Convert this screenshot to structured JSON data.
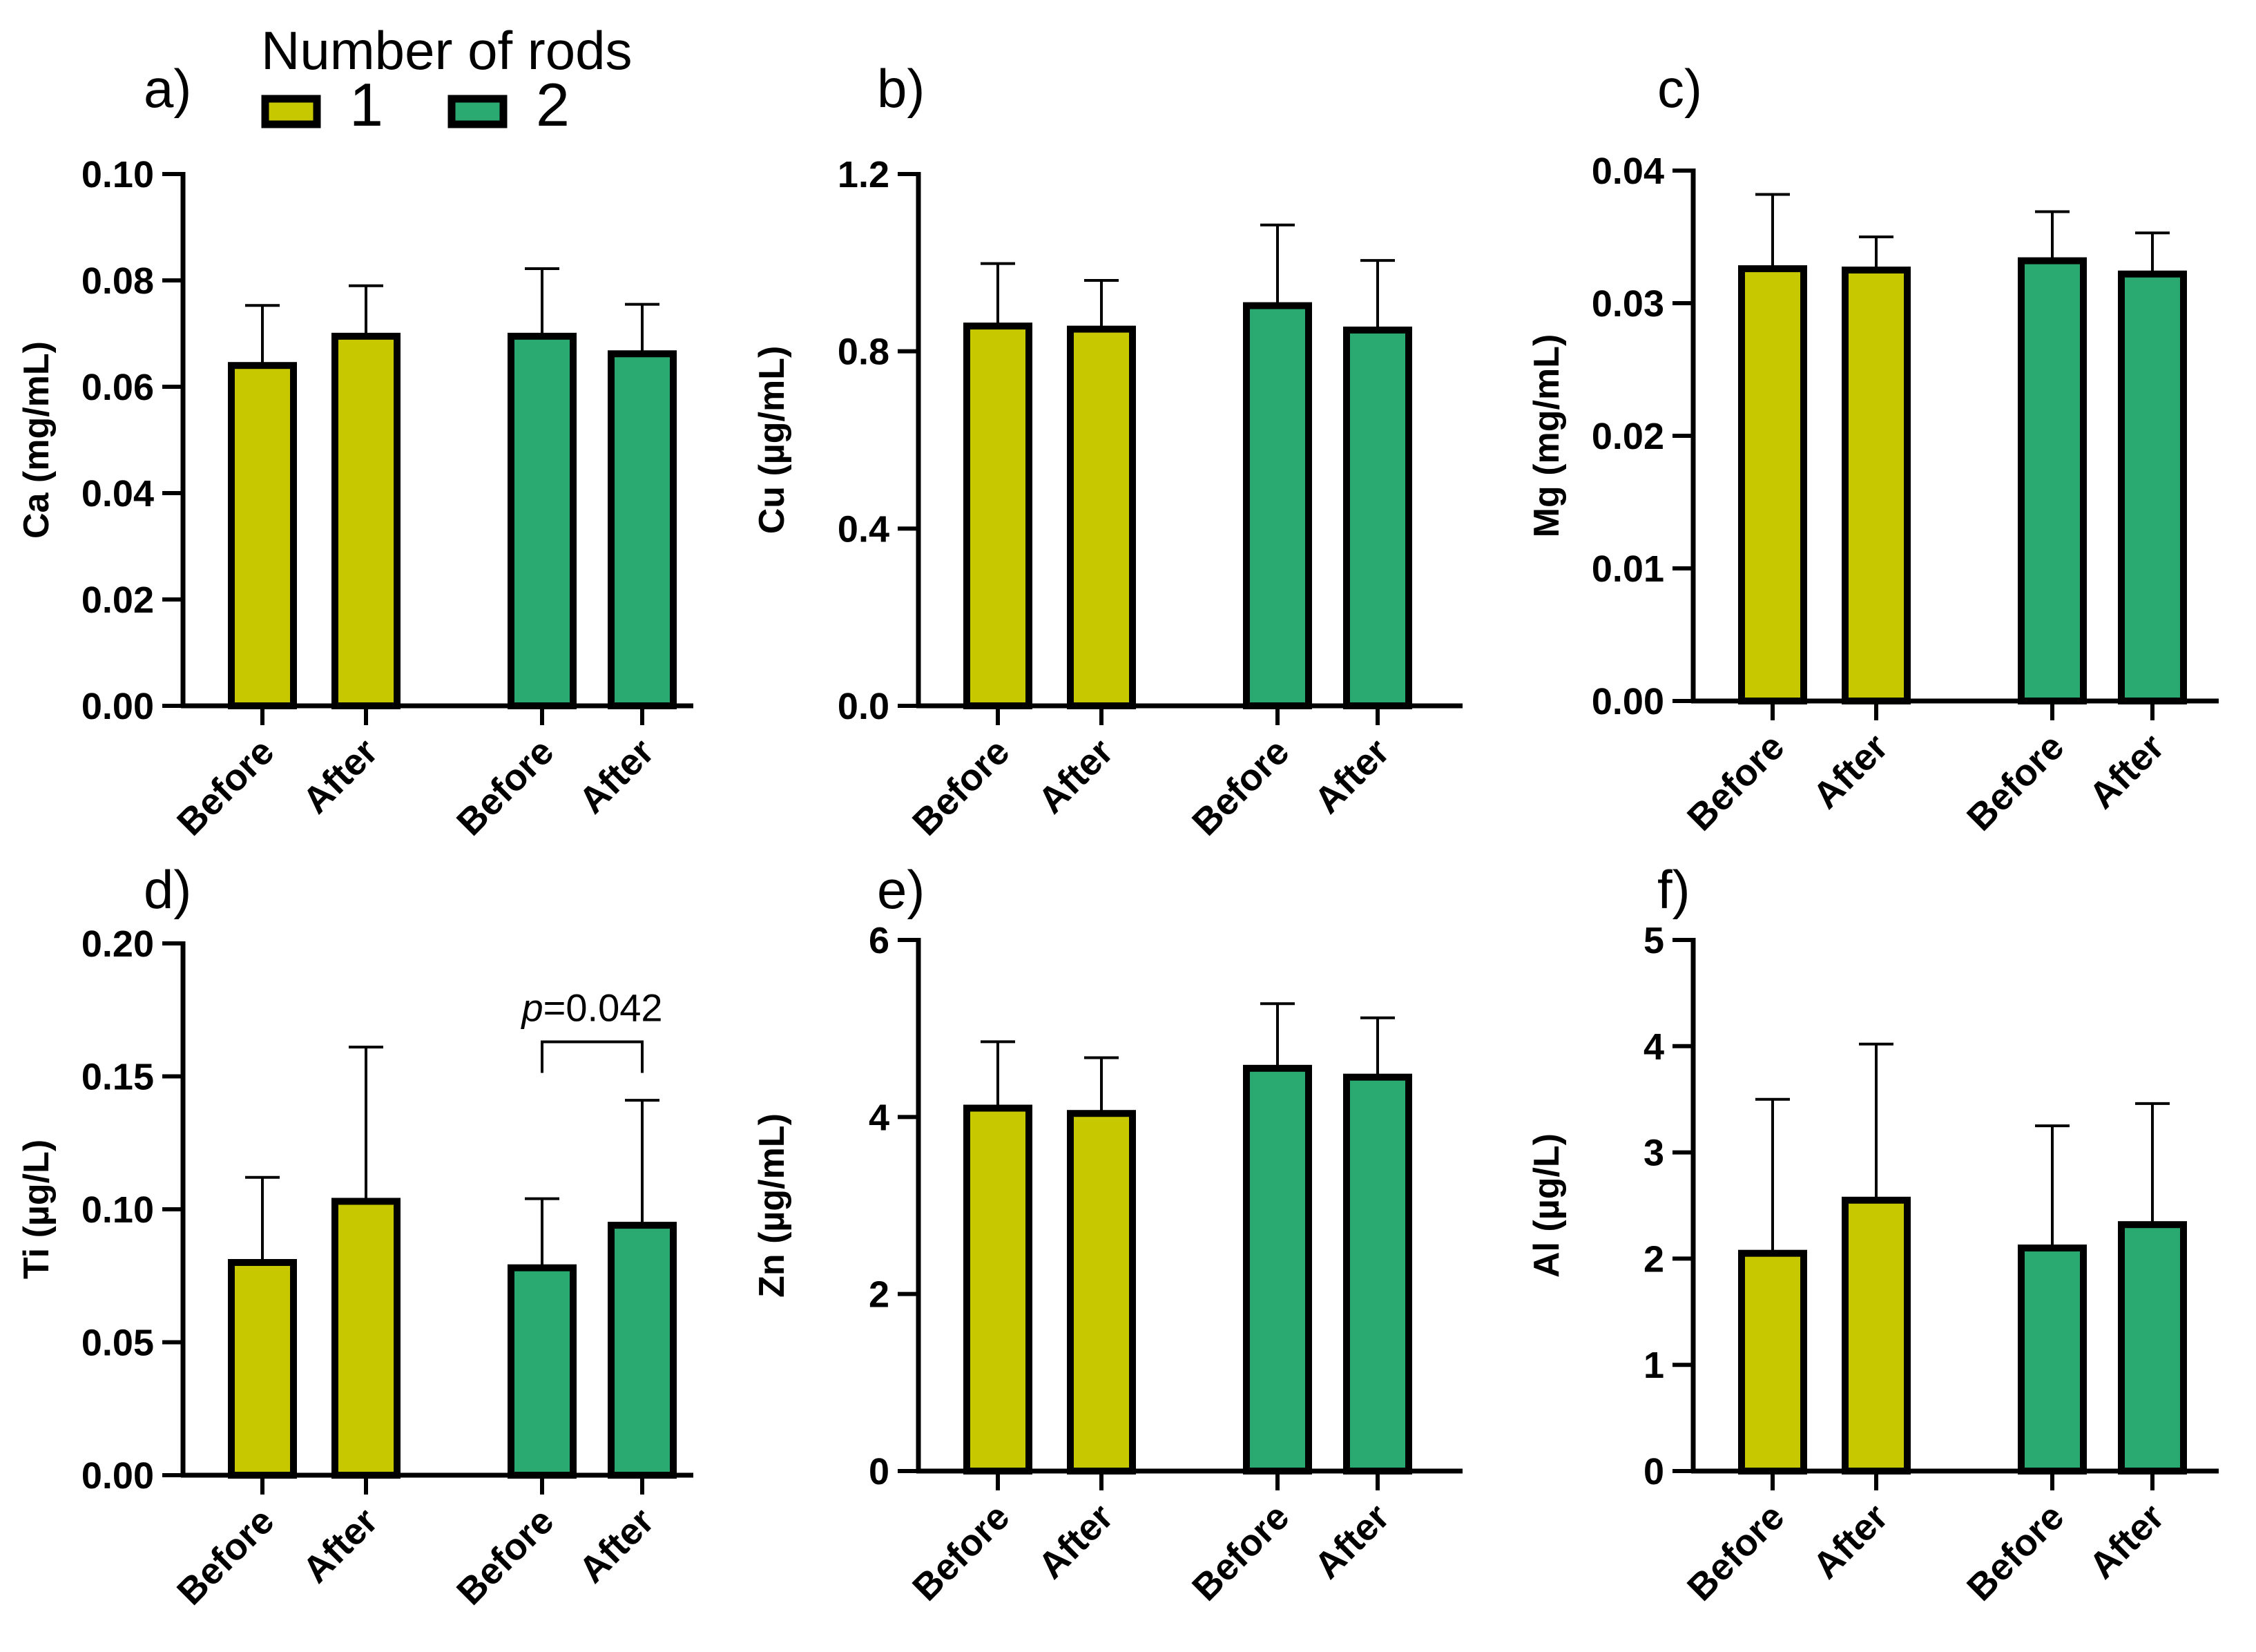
{
  "legend": {
    "title": "Number of rods",
    "entries": [
      {
        "label": "1",
        "color": "#c8c800"
      },
      {
        "label": "2",
        "color": "#2aaa70"
      }
    ]
  },
  "chart_data": [
    {
      "type": "bar",
      "panel": "a)",
      "ylabel": "Ca (mg/mL)",
      "ylim": [
        0,
        0.1
      ],
      "yticks": [
        "0.00",
        "0.02",
        "0.04",
        "0.06",
        "0.08",
        "0.10"
      ],
      "categories": [
        "Before",
        "After",
        "Before",
        "After"
      ],
      "groups": [
        "1",
        "1",
        "2",
        "2"
      ],
      "values": [
        0.064,
        0.0695,
        0.0695,
        0.0662
      ],
      "error_upper": [
        0.0753,
        0.079,
        0.0822,
        0.0755
      ]
    },
    {
      "type": "bar",
      "panel": "b)",
      "ylabel": "Cu (µg/mL)",
      "ylim": [
        0,
        1.2
      ],
      "yticks": [
        "0.0",
        "0.4",
        "0.8",
        "1.2"
      ],
      "categories": [
        "Before",
        "After",
        "Before",
        "After"
      ],
      "groups": [
        "1",
        "1",
        "2",
        "2"
      ],
      "values": [
        0.857,
        0.85,
        0.903,
        0.848
      ],
      "error_upper": [
        0.998,
        0.96,
        1.085,
        1.005
      ]
    },
    {
      "type": "bar",
      "panel": "c)",
      "ylabel": "Mg (mg/mL)",
      "ylim": [
        0,
        0.04
      ],
      "yticks": [
        "0.00",
        "0.01",
        "0.02",
        "0.03",
        "0.04"
      ],
      "categories": [
        "Before",
        "After",
        "Before",
        "After"
      ],
      "groups": [
        "1",
        "1",
        "2",
        "2"
      ],
      "values": [
        0.0326,
        0.0325,
        0.0332,
        0.0322
      ],
      "error_upper": [
        0.0382,
        0.035,
        0.0369,
        0.0353
      ]
    },
    {
      "type": "bar",
      "panel": "d)",
      "ylabel": "Ti (µg/L)",
      "ylim": [
        0,
        0.2
      ],
      "yticks": [
        "0.00",
        "0.05",
        "0.10",
        "0.15",
        "0.20"
      ],
      "categories": [
        "Before",
        "After",
        "Before",
        "After"
      ],
      "groups": [
        "1",
        "1",
        "2",
        "2"
      ],
      "values": [
        0.08,
        0.103,
        0.078,
        0.094
      ],
      "error_upper": [
        0.112,
        0.161,
        0.104,
        0.141
      ],
      "annotation": {
        "prefix": "p",
        "text": "=0.042",
        "between": [
          2,
          3
        ],
        "at": 0.163
      }
    },
    {
      "type": "bar",
      "panel": "e)",
      "ylabel": "Zn (µg/mL)",
      "ylim": [
        0,
        6
      ],
      "yticks": [
        "0",
        "2",
        "4",
        "6"
      ],
      "categories": [
        "Before",
        "After",
        "Before",
        "After"
      ],
      "groups": [
        "1",
        "1",
        "2",
        "2"
      ],
      "values": [
        4.1,
        4.04,
        4.55,
        4.45
      ],
      "error_upper": [
        4.85,
        4.67,
        5.28,
        5.12
      ]
    },
    {
      "type": "bar",
      "panel": "f)",
      "ylabel": "Al (µg/L)",
      "ylim": [
        0,
        5
      ],
      "yticks": [
        "0",
        "1",
        "2",
        "3",
        "4",
        "5"
      ],
      "categories": [
        "Before",
        "After",
        "Before",
        "After"
      ],
      "groups": [
        "1",
        "1",
        "2",
        "2"
      ],
      "values": [
        2.05,
        2.55,
        2.1,
        2.32
      ],
      "error_upper": [
        3.5,
        4.02,
        3.25,
        3.46
      ]
    }
  ]
}
